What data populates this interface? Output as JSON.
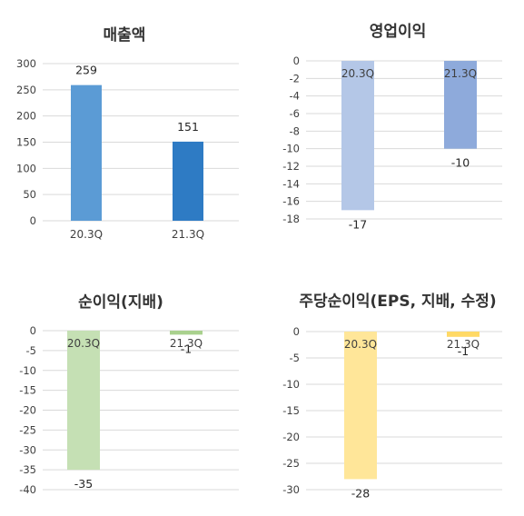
{
  "chart_data": [
    {
      "type": "bar",
      "title": "매출액",
      "categories": [
        "20.3Q",
        "21.3Q"
      ],
      "values": [
        259,
        151
      ],
      "colors": [
        "#5b9bd5",
        "#2e7bc4"
      ],
      "yticks": [
        "300",
        "250",
        "200",
        "150",
        "100",
        "50",
        "0"
      ],
      "ylim": [
        0,
        300
      ],
      "grid": true,
      "xlabel": "",
      "ylabel": ""
    },
    {
      "type": "bar",
      "title": "영업이익",
      "categories": [
        "20.3Q",
        "21.3Q"
      ],
      "values": [
        -17,
        -10
      ],
      "colors": [
        "#b4c7e7",
        "#8eaadb"
      ],
      "yticks": [
        "0",
        "-2",
        "-4",
        "-6",
        "-8",
        "-10",
        "-12",
        "-14",
        "-16",
        "-18"
      ],
      "ylim": [
        -18,
        0
      ],
      "grid": true,
      "xlabel": "",
      "ylabel": ""
    },
    {
      "type": "bar",
      "title": "순이익(지배)",
      "categories": [
        "20.3Q",
        "21.3Q"
      ],
      "values": [
        -35,
        -1
      ],
      "colors": [
        "#c5e0b4",
        "#a9d18e"
      ],
      "yticks": [
        "0",
        "-5",
        "-10",
        "-15",
        "-20",
        "-25",
        "-30",
        "-35",
        "-40"
      ],
      "ylim": [
        -40,
        0
      ],
      "grid": true,
      "xlabel": "",
      "ylabel": ""
    },
    {
      "type": "bar",
      "title": "주당순이익(EPS, 지배, 수정)",
      "categories": [
        "20.3Q",
        "21.3Q"
      ],
      "values": [
        -28,
        -1
      ],
      "colors": [
        "#ffe699",
        "#ffd966"
      ],
      "yticks": [
        "0",
        "-5",
        "-10",
        "-15",
        "-20",
        "-25",
        "-30"
      ],
      "ylim": [
        -30,
        0
      ],
      "grid": true,
      "xlabel": "",
      "ylabel": ""
    }
  ]
}
